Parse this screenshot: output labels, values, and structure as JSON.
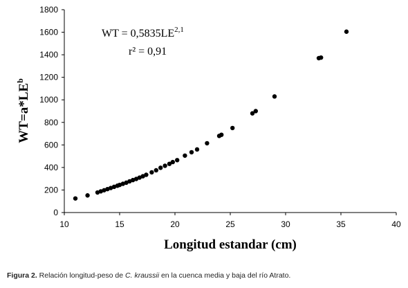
{
  "chart_data": {
    "type": "scatter",
    "title": "",
    "xlabel": "Longitud estandar (cm)",
    "ylabel": {
      "main": "WT=a*LE",
      "sup": "b"
    },
    "xlim": [
      10,
      40
    ],
    "ylim": [
      0,
      1800
    ],
    "xticks": [
      "10",
      "15",
      "20",
      "25",
      "30",
      "35",
      "40"
    ],
    "yticks": [
      "0",
      "200",
      "400",
      "600",
      "800",
      "1000",
      "1200",
      "1400",
      "1600",
      "1800"
    ],
    "grid": false,
    "marker_color": "#000000",
    "annotation": {
      "equation": {
        "base": "WT = 0,5835LE",
        "sup": "2,1"
      },
      "r2": "r² = 0,91"
    },
    "series": [
      {
        "points": [
          [
            11.0,
            125
          ],
          [
            12.1,
            152
          ],
          [
            13.0,
            178
          ],
          [
            13.3,
            188
          ],
          [
            13.6,
            198
          ],
          [
            13.9,
            208
          ],
          [
            14.2,
            218
          ],
          [
            14.5,
            228
          ],
          [
            14.8,
            238
          ],
          [
            15.0,
            245
          ],
          [
            15.3,
            255
          ],
          [
            15.6,
            265
          ],
          [
            15.9,
            277
          ],
          [
            16.2,
            288
          ],
          [
            16.5,
            298
          ],
          [
            16.8,
            310
          ],
          [
            17.1,
            322
          ],
          [
            17.4,
            335
          ],
          [
            17.9,
            357
          ],
          [
            18.3,
            375
          ],
          [
            18.7,
            397
          ],
          [
            19.1,
            415
          ],
          [
            19.5,
            432
          ],
          [
            19.8,
            448
          ],
          [
            20.2,
            465
          ],
          [
            20.9,
            505
          ],
          [
            21.5,
            535
          ],
          [
            22.0,
            560
          ],
          [
            22.9,
            615
          ],
          [
            24.0,
            680
          ],
          [
            24.2,
            690
          ],
          [
            25.2,
            750
          ],
          [
            27.0,
            880
          ],
          [
            27.3,
            900
          ],
          [
            29.0,
            1030
          ],
          [
            33.0,
            1370
          ],
          [
            33.2,
            1375
          ],
          [
            35.5,
            1605
          ]
        ]
      }
    ]
  },
  "caption": {
    "label": "Figura 2.",
    "text_before": " Relación longitud-peso de ",
    "species": "C. kraussii",
    "text_after": " en la cuenca media y baja del río Atrato."
  }
}
